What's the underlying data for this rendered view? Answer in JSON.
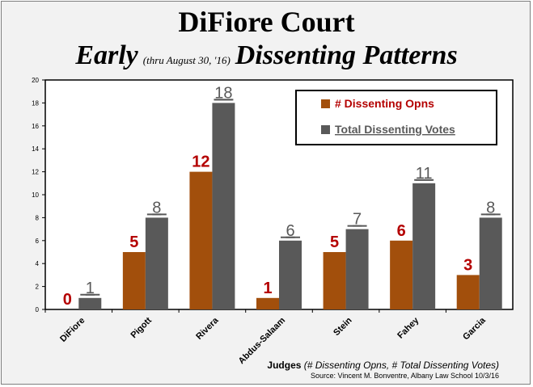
{
  "header": {
    "title": "DiFiore Court",
    "subtitle_left": "Early",
    "subtitle_note": "(thru August 30, '16)",
    "subtitle_right": "Dissenting Patterns"
  },
  "footer": {
    "xaxis_title_main": "Judges",
    "xaxis_title_paren": "(# Dissenting Opns, # Total Dissenting Votes)",
    "source": "Source: Vincent M. Bonventre, Albany Law School  10/3/16"
  },
  "colors": {
    "opns": "#a24f0c",
    "votes": "#595959",
    "opns_label": "#b40000",
    "votes_label": "#595959"
  },
  "chart_data": {
    "type": "bar",
    "categories": [
      "DiFiore",
      "Pigott",
      "Rivera",
      "Abdus-Salaam",
      "Stein",
      "Fahey",
      "Garcia"
    ],
    "series": [
      {
        "name": "# Dissenting Opns",
        "values": [
          0,
          5,
          12,
          1,
          5,
          6,
          3
        ]
      },
      {
        "name": "Total Dissenting Votes",
        "values": [
          1,
          8,
          18,
          6,
          7,
          11,
          8
        ]
      }
    ],
    "ylim": [
      0,
      20
    ],
    "yticks": [
      "0",
      "2",
      "4",
      "6",
      "8",
      "10",
      "12",
      "14",
      "16",
      "18",
      "20"
    ],
    "legend_position": "top-right",
    "grid": false
  }
}
